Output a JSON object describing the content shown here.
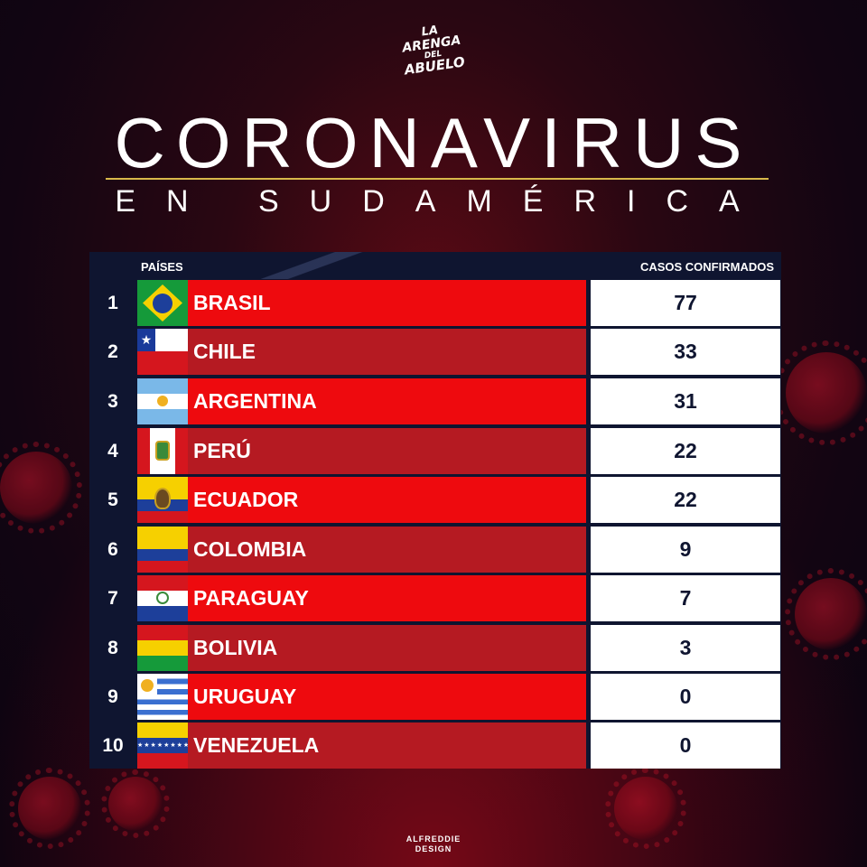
{
  "logo": {
    "line1": "LA",
    "line2": "ARENGA",
    "line3": "DEL",
    "line4": "ABUELO"
  },
  "title": "CORONAVIRUS",
  "subtitle": "EN SUDAMÉRICA",
  "table": {
    "header_countries": "PAÍSES",
    "header_cases": "CASOS CONFIRMADOS",
    "rows": [
      {
        "rank": "1",
        "country": "BRASIL",
        "cases": "77",
        "flag": "brazil-flag"
      },
      {
        "rank": "2",
        "country": "CHILE",
        "cases": "33",
        "flag": "chile-flag"
      },
      {
        "rank": "3",
        "country": "ARGENTINA",
        "cases": "31",
        "flag": "argentina-flag"
      },
      {
        "rank": "4",
        "country": "PERÚ",
        "cases": "22",
        "flag": "peru-flag"
      },
      {
        "rank": "5",
        "country": "ECUADOR",
        "cases": "22",
        "flag": "ecuador-flag"
      },
      {
        "rank": "6",
        "country": "COLOMBIA",
        "cases": "9",
        "flag": "colombia-flag"
      },
      {
        "rank": "7",
        "country": "PARAGUAY",
        "cases": "7",
        "flag": "paraguay-flag"
      },
      {
        "rank": "8",
        "country": "BOLIVIA",
        "cases": "3",
        "flag": "bolivia-flag"
      },
      {
        "rank": "9",
        "country": "URUGUAY",
        "cases": "0",
        "flag": "uruguay-flag"
      },
      {
        "rank": "10",
        "country": "VENEZUELA",
        "cases": "0",
        "flag": "venezuela-flag"
      }
    ]
  },
  "credit": {
    "line1": "ALFREDDIE",
    "line2": "DESIGN"
  },
  "colors": {
    "row_bright": "#ee0a0e",
    "row_dark": "#b51a22",
    "table_bg": "#0f1530",
    "accent_line": "#d8b84a"
  }
}
